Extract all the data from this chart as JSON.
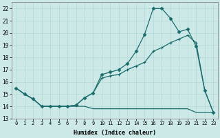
{
  "xlabel": "Humidex (Indice chaleur)",
  "background_color": "#cce9e8",
  "grid_color": "#b0d8d6",
  "line_color": "#1a6b6b",
  "xlim": [
    -0.5,
    23.5
  ],
  "ylim": [
    13.0,
    22.5
  ],
  "yticks": [
    13,
    14,
    15,
    16,
    17,
    18,
    19,
    20,
    21,
    22
  ],
  "xticks": [
    0,
    1,
    2,
    3,
    4,
    5,
    6,
    7,
    8,
    9,
    10,
    11,
    12,
    13,
    14,
    15,
    16,
    17,
    18,
    19,
    20,
    21,
    22,
    23
  ],
  "s1_y": [
    15.5,
    15.0,
    14.6,
    14.0,
    14.0,
    14.0,
    14.0,
    14.0,
    14.0,
    13.8,
    13.8,
    13.8,
    13.8,
    13.8,
    13.8,
    13.8,
    13.8,
    13.8,
    13.8,
    13.8,
    13.8,
    13.5,
    13.5,
    13.5
  ],
  "s2_y": [
    15.5,
    15.0,
    14.6,
    14.0,
    14.0,
    14.0,
    14.0,
    14.1,
    14.7,
    15.1,
    16.3,
    16.5,
    16.6,
    17.0,
    17.3,
    17.6,
    18.5,
    18.8,
    19.2,
    19.5,
    19.8,
    19.2,
    15.3,
    13.5
  ],
  "s3_y": [
    15.5,
    15.0,
    14.6,
    14.0,
    14.0,
    14.0,
    14.0,
    14.1,
    14.7,
    15.1,
    16.6,
    16.8,
    17.0,
    17.5,
    18.5,
    19.9,
    22.0,
    22.0,
    21.2,
    20.1,
    20.3,
    18.9,
    15.3,
    13.5
  ]
}
